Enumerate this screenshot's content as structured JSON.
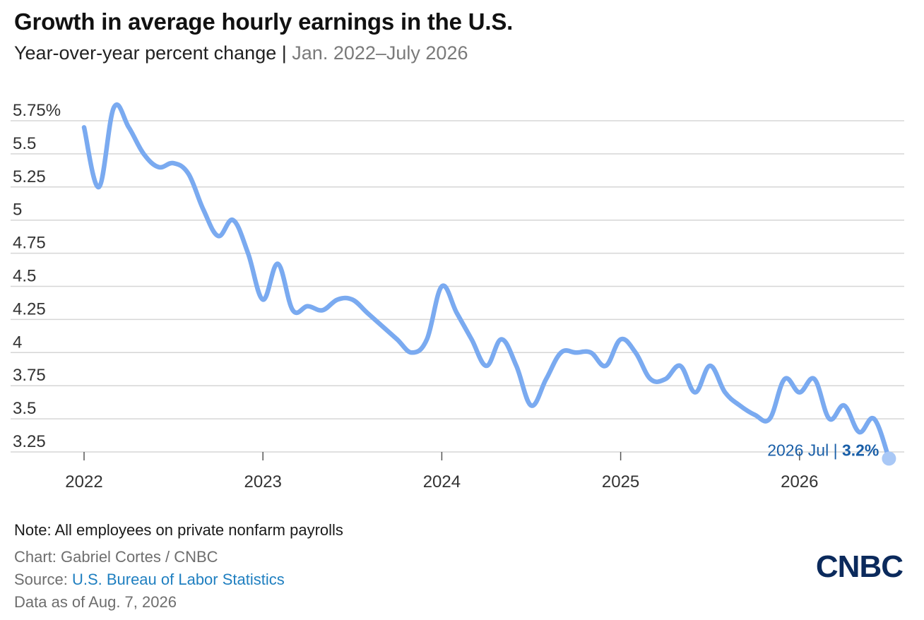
{
  "title": "Growth in average hourly earnings in the U.S.",
  "subtitle": {
    "main": "Year-over-year percent change",
    "separator": "|",
    "range": "Jan. 2022–July 2026"
  },
  "footer": {
    "note": "Note: All employees on private nonfarm payrolls",
    "credit": "Chart: Gabriel Cortes / CNBC",
    "source_label": "Source: ",
    "source_link": "U.S. Bureau of Labor Statistics",
    "as_of": "Data as of Aug. 7, 2026"
  },
  "logo": "CNBC",
  "colors": {
    "line": "#7aaaf0",
    "endpoint": "#a9c8f6",
    "annotation": "#1a5fa8",
    "grid": "#d6d6d6",
    "axis": "#555555"
  },
  "chart_data": {
    "type": "line",
    "title": "Growth in average hourly earnings in the U.S.",
    "x_start": "2022-01",
    "x_end": "2026-07",
    "ylim": [
      3.2,
      5.85
    ],
    "yticks": [
      3.25,
      3.5,
      3.75,
      4,
      4.25,
      4.5,
      4.75,
      5,
      5.25,
      5.5,
      5.75
    ],
    "ytick_labels": [
      "3.25",
      "3.5",
      "3.75",
      "4",
      "4.25",
      "4.5",
      "4.75",
      "5",
      "5.25",
      "5.5",
      "5.75%"
    ],
    "xticks": [
      "2022",
      "2023",
      "2024",
      "2025",
      "2026"
    ],
    "grid": "horizontal",
    "series": [
      {
        "months": [
          "2022-01",
          "2022-02",
          "2022-03",
          "2022-04",
          "2022-05",
          "2022-06",
          "2022-07",
          "2022-08",
          "2022-09",
          "2022-10",
          "2022-11",
          "2022-12",
          "2023-01",
          "2023-02",
          "2023-03",
          "2023-04",
          "2023-05",
          "2023-06",
          "2023-07",
          "2023-08",
          "2023-09",
          "2023-10",
          "2023-11",
          "2023-12",
          "2024-01",
          "2024-02",
          "2024-03",
          "2024-04",
          "2024-05",
          "2024-06",
          "2024-07",
          "2024-08",
          "2024-09",
          "2024-10",
          "2024-11",
          "2024-12",
          "2025-01",
          "2025-02",
          "2025-03",
          "2025-04",
          "2025-05",
          "2025-06",
          "2025-07",
          "2025-08",
          "2025-09",
          "2025-10",
          "2025-11",
          "2025-12",
          "2026-01",
          "2026-02",
          "2026-03",
          "2026-04",
          "2026-05",
          "2026-06",
          "2026-07"
        ],
        "values": [
          5.7,
          5.25,
          5.85,
          5.7,
          5.5,
          5.4,
          5.43,
          5.35,
          5.08,
          4.88,
          5.0,
          4.75,
          4.4,
          4.67,
          4.32,
          4.35,
          4.32,
          4.4,
          4.4,
          4.3,
          4.2,
          4.1,
          4.0,
          4.1,
          4.5,
          4.3,
          4.1,
          3.9,
          4.1,
          3.9,
          3.6,
          3.8,
          4.0,
          4.0,
          4.0,
          3.9,
          4.1,
          4.0,
          3.8,
          3.8,
          3.9,
          3.7,
          3.9,
          3.7,
          3.6,
          3.53,
          3.5,
          3.8,
          3.7,
          3.8,
          3.5,
          3.6,
          3.4,
          3.5,
          3.2
        ]
      }
    ],
    "annotation": {
      "label": "2026 Jul",
      "separator": "|",
      "value_label": "3.2%"
    }
  }
}
